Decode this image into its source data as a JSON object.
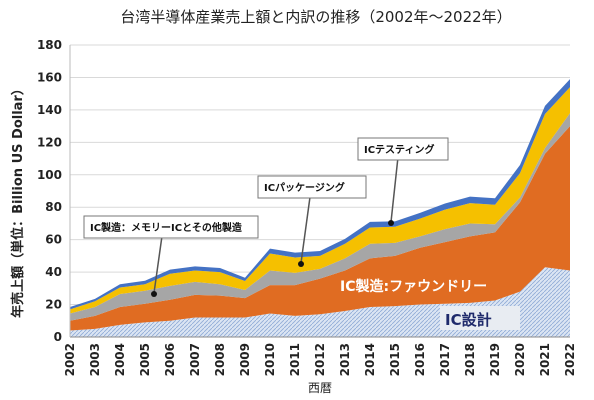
{
  "chart_data": {
    "type": "area",
    "title": "台湾半導体産業売上額と内訳の推移（2002年～2022年）",
    "xlabel": "西暦",
    "ylabel": "年売上額（単位：Billion US Dollar）",
    "ylim": [
      0,
      180
    ],
    "yticks": [
      0,
      20,
      40,
      60,
      80,
      100,
      120,
      140,
      160,
      180
    ],
    "grid": "horizontal",
    "stacked": true,
    "x": [
      "2002",
      "2003",
      "2004",
      "2005",
      "2006",
      "2007",
      "2008",
      "2009",
      "2010",
      "2011",
      "2012",
      "2013",
      "2014",
      "2015",
      "2016",
      "2017",
      "2018",
      "2019",
      "2020",
      "2021",
      "2022"
    ],
    "series": [
      {
        "name": "IC設計",
        "color": "#c9d7ea",
        "pattern": "hatch",
        "values": [
          4,
          5,
          7.5,
          9,
          10,
          12,
          12,
          12,
          14.5,
          13,
          14,
          16,
          18.5,
          19,
          20,
          20.5,
          21,
          22.5,
          28,
          43,
          41
        ]
      },
      {
        "name": "IC製造:ファウンドリー",
        "color": "#e06c22",
        "values": [
          6,
          8,
          11,
          11.5,
          13,
          14,
          13.5,
          12,
          17.5,
          19,
          22,
          25,
          30,
          31,
          35,
          38,
          41,
          42,
          55,
          70,
          89
        ]
      },
      {
        "name": "IC製造：メモリーICとその他製造",
        "color": "#a6a6a6",
        "values": [
          4.5,
          5.5,
          8,
          8,
          8.5,
          8,
          7,
          5,
          9,
          7.5,
          6,
          7.5,
          9,
          8,
          7,
          8,
          8,
          5,
          3,
          3.5,
          8
        ]
      },
      {
        "name": "ICパッケージング",
        "color": "#f5c000",
        "values": [
          2.5,
          3.5,
          4,
          4,
          7.5,
          7,
          7.5,
          5.5,
          10.5,
          9.5,
          8,
          9,
          10,
          10,
          11,
          12,
          12.5,
          12,
          15,
          21,
          16
        ]
      },
      {
        "name": "ICテスティング",
        "color": "#4472c4",
        "values": [
          1.5,
          1.5,
          2,
          2.2,
          2.5,
          2.5,
          2.5,
          2,
          3,
          3,
          3,
          3,
          3.5,
          3.3,
          3.5,
          3.8,
          4,
          4,
          5,
          5,
          5
        ]
      }
    ],
    "annotations": {
      "design": "IC設計",
      "foundry": "IC製造:ファウンドリー",
      "memory": "IC製造：メモリーICとその他製造",
      "packaging": "ICパッケージング",
      "testing": "ICテスティング"
    }
  }
}
